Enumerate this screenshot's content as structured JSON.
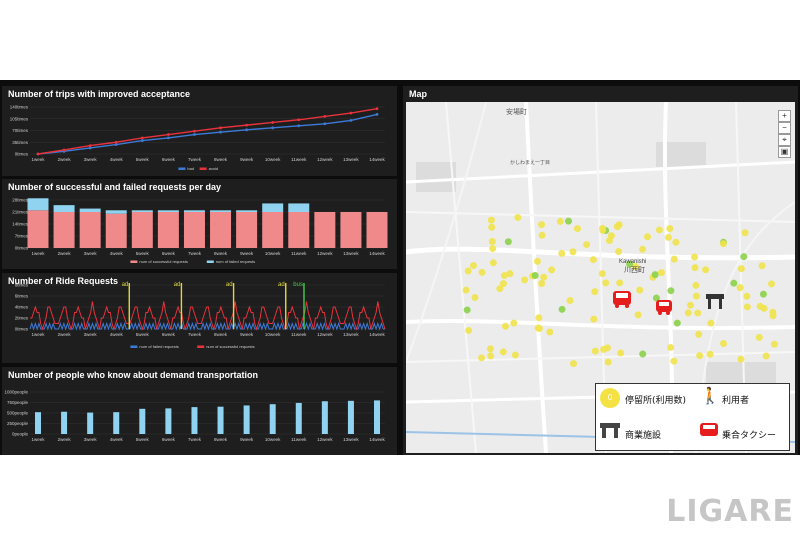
{
  "weeks": [
    "1week",
    "2week",
    "3week",
    "4week",
    "5week",
    "6week",
    "7week",
    "8week",
    "9week",
    "10week",
    "11week",
    "12week",
    "13week",
    "14week"
  ],
  "panel1": {
    "title": "Number of trips with improved acceptance",
    "yticks": [
      "140times",
      "105times",
      "70times",
      "35times",
      "0times"
    ],
    "legend": [
      "bad",
      "avoid"
    ],
    "colors": [
      "#3d7bd9",
      "#e8323c"
    ],
    "chart_data": {
      "type": "line",
      "ylim": [
        0,
        140
      ],
      "series": [
        {
          "name": "bad",
          "values": [
            0,
            8,
            18,
            28,
            40,
            48,
            58,
            65,
            72,
            78,
            84,
            90,
            100,
            118
          ]
        },
        {
          "name": "avoid",
          "values": [
            0,
            12,
            25,
            35,
            48,
            58,
            68,
            78,
            86,
            94,
            102,
            112,
            122,
            135
          ]
        }
      ]
    }
  },
  "panel2": {
    "title": "Number of successful and failed requests per day",
    "yticks": [
      "28times",
      "21times",
      "14times",
      "7times",
      "0times"
    ],
    "legend": [
      "num of successful requests",
      "num of failed requests"
    ],
    "colors": [
      "#f08a8a",
      "#8fd3f0"
    ],
    "chart_data": {
      "type": "bar",
      "ylim": [
        0,
        28
      ],
      "series": [
        {
          "name": "num of successful requests",
          "values": [
            22,
            21,
            21,
            20,
            21,
            21,
            21,
            21,
            21,
            21,
            21,
            21,
            21,
            21
          ]
        },
        {
          "name": "num of failed requests",
          "values": [
            7,
            4,
            2,
            2,
            1,
            1,
            1,
            1,
            1,
            5,
            5,
            0,
            0,
            0
          ]
        }
      ]
    }
  },
  "panel3": {
    "title": "Number of Ride Requests",
    "yticks": [
      "8times",
      "6times",
      "4times",
      "2times",
      "0times"
    ],
    "legend": [
      "num of failed requests",
      "num of successful requests"
    ],
    "colors": [
      "#3d7bd9",
      "#e8323c"
    ],
    "annotations": [
      "ad",
      "ad",
      "ad",
      "ad",
      "bus"
    ],
    "annotation_colors": [
      "#e0d83a",
      "#e0d83a",
      "#e0d83a",
      "#e0d83a",
      "#3fcf4a"
    ],
    "chart_data": {
      "type": "line",
      "ylim": [
        0,
        8
      ],
      "annotations_at_week": [
        4.5,
        6.5,
        8.5,
        10.5,
        11.2
      ],
      "series": [
        {
          "name": "num of successful requests",
          "pattern": [
            1,
            2,
            3,
            4,
            3,
            2,
            1,
            0
          ]
        },
        {
          "name": "num of failed requests",
          "pattern": [
            0,
            1,
            0,
            1,
            0,
            1,
            0,
            0
          ]
        }
      ]
    }
  },
  "panel4": {
    "title": "Number of people who know about demand transportation",
    "yticks": [
      "1000people",
      "750people",
      "500people",
      "250people",
      "0people"
    ],
    "color": "#8fd3f0",
    "chart_data": {
      "type": "bar",
      "ylim": [
        0,
        1000
      ],
      "values": [
        520,
        530,
        510,
        520,
        600,
        610,
        640,
        650,
        680,
        710,
        740,
        780,
        790,
        800
      ]
    }
  },
  "map": {
    "title": "Map",
    "places": [
      "安場町",
      "かしわまえ一丁目",
      "川西町",
      "Kawanishi"
    ],
    "legend": {
      "stop": "停留所(利用数)",
      "stop_count": "0",
      "user": "利用者",
      "facility": "商業施設",
      "taxi": "乗合タクシー"
    },
    "attribution": "© OpenStreetMap © OpenMapTiles"
  },
  "watermark": "LIGARE"
}
